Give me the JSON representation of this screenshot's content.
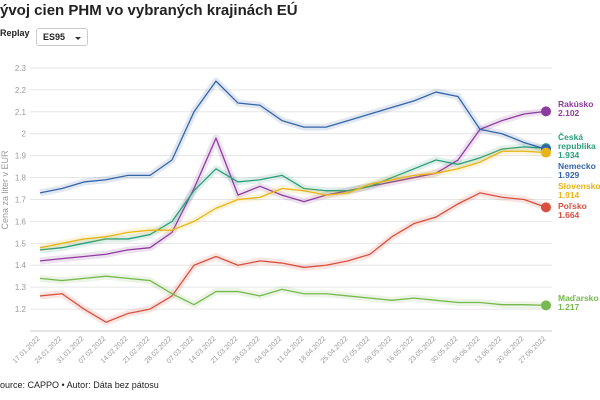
{
  "chart_data": {
    "type": "line",
    "title": "ývoj cien PHM vo vybraných krajinách EÚ",
    "controls": {
      "replay": "Replay",
      "fuel": "ES95"
    },
    "y_label": "Cena za liter v EUR",
    "source": "ource: CAPPO • Autor: Dáta bez pátosu",
    "categories": [
      "17.01.2022",
      "24.01.2022",
      "31.01.2022",
      "07.02.2022",
      "14.02.2022",
      "21.02.2022",
      "28.02.2022",
      "07.03.2022",
      "14.03.2022",
      "21.03.2022",
      "28.03.2022",
      "04.04.2022",
      "11.04.2022",
      "18.04.2022",
      "25.04.2022",
      "02.05.2022",
      "09.05.2022",
      "16.05.2022",
      "23.05.2022",
      "30.05.2022",
      "06.06.2022",
      "13.06.2022",
      "20.06.2022",
      "27.06.2022"
    ],
    "ylim": [
      1.1,
      2.35
    ],
    "yticks": [
      1.2,
      1.3,
      1.4,
      1.5,
      1.6,
      1.7,
      1.8,
      1.9,
      2,
      2.1,
      2.2,
      2.3
    ],
    "grid": true,
    "series": [
      {
        "name": "Rakúsko",
        "color": "#8e3b9e",
        "values": [
          1.42,
          1.43,
          1.44,
          1.45,
          1.47,
          1.48,
          1.55,
          1.75,
          1.98,
          1.72,
          1.76,
          1.72,
          1.69,
          1.72,
          1.74,
          1.76,
          1.78,
          1.8,
          1.82,
          1.88,
          2.02,
          2.06,
          2.09,
          2.102
        ]
      },
      {
        "name": "Česká republika",
        "color": "#2a9d7a",
        "values": [
          1.47,
          1.48,
          1.5,
          1.52,
          1.52,
          1.54,
          1.6,
          1.74,
          1.84,
          1.78,
          1.79,
          1.81,
          1.75,
          1.74,
          1.74,
          1.76,
          1.8,
          1.84,
          1.88,
          1.86,
          1.89,
          1.93,
          1.94,
          1.934
        ]
      },
      {
        "name": "Nemecko",
        "color": "#3565a8",
        "values": [
          1.73,
          1.75,
          1.78,
          1.79,
          1.81,
          1.81,
          1.88,
          2.1,
          2.24,
          2.14,
          2.13,
          2.06,
          2.03,
          2.03,
          2.06,
          2.09,
          2.12,
          2.15,
          2.19,
          2.17,
          2.02,
          2.0,
          1.96,
          1.929
        ]
      },
      {
        "name": "Slovensko",
        "color": "#e8b415",
        "values": [
          1.48,
          1.5,
          1.52,
          1.53,
          1.55,
          1.56,
          1.56,
          1.6,
          1.66,
          1.7,
          1.71,
          1.75,
          1.74,
          1.72,
          1.73,
          1.77,
          1.79,
          1.81,
          1.82,
          1.84,
          1.87,
          1.92,
          1.92,
          1.914
        ]
      },
      {
        "name": "Poľsko",
        "color": "#d9503f",
        "values": [
          1.26,
          1.27,
          1.2,
          1.14,
          1.18,
          1.2,
          1.26,
          1.4,
          1.44,
          1.4,
          1.42,
          1.41,
          1.39,
          1.4,
          1.42,
          1.45,
          1.53,
          1.59,
          1.62,
          1.68,
          1.73,
          1.71,
          1.7,
          1.664
        ]
      },
      {
        "name": "Maďarsko",
        "color": "#77b84f",
        "values": [
          1.34,
          1.33,
          1.34,
          1.35,
          1.34,
          1.33,
          1.27,
          1.22,
          1.28,
          1.28,
          1.26,
          1.29,
          1.27,
          1.27,
          1.26,
          1.25,
          1.24,
          1.25,
          1.24,
          1.23,
          1.23,
          1.22,
          1.22,
          1.217
        ]
      }
    ]
  }
}
